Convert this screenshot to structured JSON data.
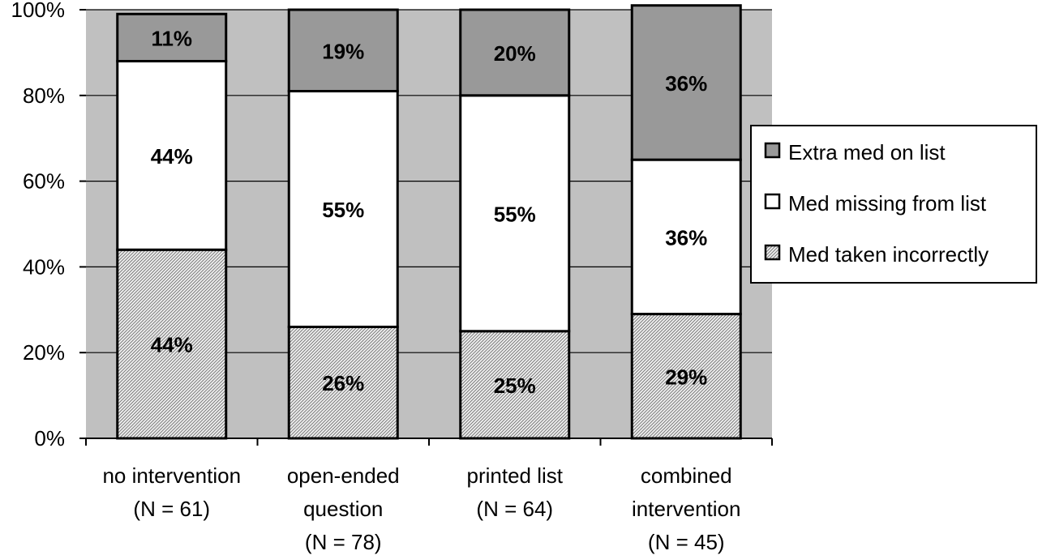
{
  "chart_data": {
    "type": "bar",
    "stacked": true,
    "categories": [
      [
        "no intervention",
        "(N = 61)"
      ],
      [
        "open-ended",
        "question",
        "(N = 78)"
      ],
      [
        "printed list",
        "(N = 64)"
      ],
      [
        "combined",
        "intervention",
        "(N = 45)"
      ]
    ],
    "series": [
      {
        "name": "Med taken incorrectly",
        "values": [
          44,
          26,
          25,
          29
        ],
        "labels": [
          "44%",
          "26%",
          "25%",
          "29%"
        ],
        "fill": "hatch"
      },
      {
        "name": "Med missing from list",
        "values": [
          44,
          55,
          55,
          36
        ],
        "labels": [
          "44%",
          "55%",
          "55%",
          "36%"
        ],
        "fill": "#ffffff"
      },
      {
        "name": "Extra med on list",
        "values": [
          11,
          19,
          20,
          36
        ],
        "labels": [
          "11%",
          "19%",
          "20%",
          "36%"
        ],
        "fill": "#999999"
      }
    ],
    "ylim": [
      0,
      100
    ],
    "yticks": [
      "0%",
      "20%",
      "40%",
      "60%",
      "80%",
      "100%"
    ],
    "legend_order": [
      "Extra med on list",
      "Med missing from list",
      "Med taken incorrectly"
    ],
    "legend_position": "right",
    "grid": true,
    "plot_background": "#c0c0c0"
  }
}
